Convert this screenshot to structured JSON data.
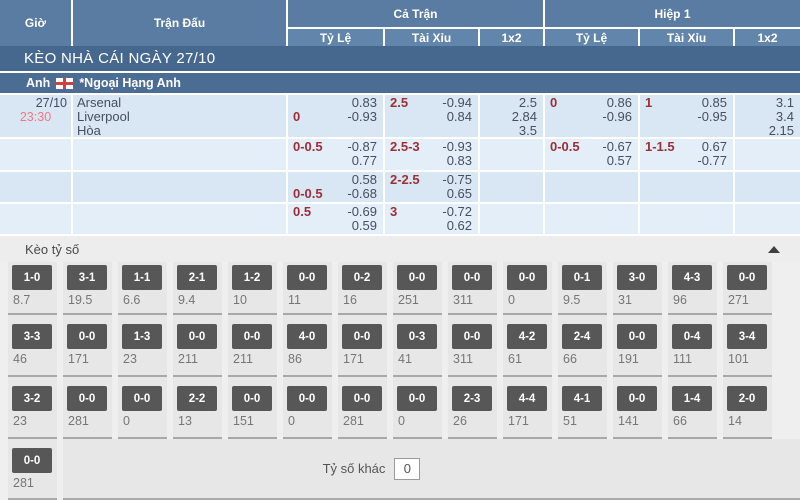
{
  "colors": {
    "header_blue": "#5b7ca2",
    "subheader_blue": "#6285ab",
    "banner_blue": "#46688f",
    "league_blue": "#4b6d94",
    "row_light": "#d9e6f3",
    "row_lighter": "#e4eef9",
    "handicap_red": "#9c2f35",
    "time_red": "#f27983",
    "value_slate": "#45505f",
    "score_box_gray": "#575757",
    "flag_red": "#d34040"
  },
  "header": {
    "col_time": "Giờ",
    "col_match": "Trận Đấu",
    "group_full": "Cả Trận",
    "group_half": "Hiệp 1",
    "sub": [
      "Tỷ Lệ",
      "Tài Xỉu",
      "1x2"
    ]
  },
  "banner": {
    "title": "KÈO NHÀ CÁI NGÀY 27/10"
  },
  "league": {
    "country": "Anh",
    "name": "*Ngoại Hạng Anh",
    "flag_icon": "england-flag-icon"
  },
  "odds_rows": [
    {
      "date": "27/10",
      "time": "23:30",
      "teams": [
        "Arsenal",
        "Liverpool",
        "Hòa"
      ],
      "ft_hdp": {
        "label": "0",
        "label_pos": "line2",
        "top": "0.83",
        "bottom": "-0.93"
      },
      "ft_ou": {
        "label": "2.5",
        "top": "-0.94",
        "bottom": "0.84"
      },
      "ft_1x2": [
        "2.5",
        "2.84",
        "3.5"
      ],
      "h1_hdp": {
        "label": "0",
        "top": "0.86",
        "bottom": "-0.96"
      },
      "h1_ou": {
        "label": "1",
        "top": "0.85",
        "bottom": "-0.95"
      },
      "h1_1x2": [
        "3.1",
        "3.4",
        "2.15"
      ]
    },
    {
      "ft_hdp": {
        "label": "0-0.5",
        "top": "-0.87",
        "bottom": "0.77"
      },
      "ft_ou": {
        "label": "2.5-3",
        "top": "-0.93",
        "bottom": "0.83"
      },
      "h1_hdp": {
        "label": "0-0.5",
        "top": "-0.67",
        "bottom": "0.57"
      },
      "h1_ou": {
        "label": "1-1.5",
        "top": "0.67",
        "bottom": "-0.77"
      }
    },
    {
      "ft_hdp": {
        "label": "0-0.5",
        "label_pos": "line2",
        "top": "0.58",
        "bottom": "-0.68"
      },
      "ft_ou": {
        "label": "2-2.5",
        "top": "-0.75",
        "bottom": "0.65"
      }
    },
    {
      "ft_hdp": {
        "label": "0.5",
        "top": "-0.69",
        "bottom": "0.59"
      },
      "ft_ou": {
        "label": "3",
        "top": "-0.72",
        "bottom": "0.62"
      }
    }
  ],
  "score_section": {
    "title": "Kèo tỷ số",
    "collapse_icon": "chevron-up-icon",
    "rows": [
      [
        {
          "score": "1-0",
          "odd": "8.7"
        },
        {
          "score": "3-1",
          "odd": "19.5"
        },
        {
          "score": "1-1",
          "odd": "6.6"
        },
        {
          "score": "2-1",
          "odd": "9.4"
        },
        {
          "score": "1-2",
          "odd": "10"
        },
        {
          "score": "0-0",
          "odd": "11"
        },
        {
          "score": "0-2",
          "odd": "16"
        },
        {
          "score": "0-0",
          "odd": "251"
        },
        {
          "score": "0-0",
          "odd": "311"
        },
        {
          "score": "0-0",
          "odd": "0"
        },
        {
          "score": "0-1",
          "odd": "9.5"
        },
        {
          "score": "3-0",
          "odd": "31"
        },
        {
          "score": "4-3",
          "odd": "96"
        },
        {
          "score": "0-0",
          "odd": "271"
        }
      ],
      [
        {
          "score": "3-3",
          "odd": "46"
        },
        {
          "score": "0-0",
          "odd": "171"
        },
        {
          "score": "1-3",
          "odd": "23"
        },
        {
          "score": "0-0",
          "odd": "211"
        },
        {
          "score": "0-0",
          "odd": "211"
        },
        {
          "score": "4-0",
          "odd": "86"
        },
        {
          "score": "0-0",
          "odd": "171"
        },
        {
          "score": "0-3",
          "odd": "41"
        },
        {
          "score": "0-0",
          "odd": "311"
        },
        {
          "score": "4-2",
          "odd": "61"
        },
        {
          "score": "2-4",
          "odd": "66"
        },
        {
          "score": "0-0",
          "odd": "191"
        },
        {
          "score": "0-4",
          "odd": "111"
        },
        {
          "score": "3-4",
          "odd": "101"
        }
      ],
      [
        {
          "score": "3-2",
          "odd": "23"
        },
        {
          "score": "0-0",
          "odd": "281"
        },
        {
          "score": "0-0",
          "odd": "0"
        },
        {
          "score": "2-2",
          "odd": "13"
        },
        {
          "score": "0-0",
          "odd": "151"
        },
        {
          "score": "0-0",
          "odd": "0"
        },
        {
          "score": "0-0",
          "odd": "281"
        },
        {
          "score": "0-0",
          "odd": "0"
        },
        {
          "score": "2-3",
          "odd": "26"
        },
        {
          "score": "4-4",
          "odd": "171"
        },
        {
          "score": "4-1",
          "odd": "51"
        },
        {
          "score": "0-0",
          "odd": "141"
        },
        {
          "score": "1-4",
          "odd": "66"
        },
        {
          "score": "2-0",
          "odd": "14"
        }
      ],
      [
        {
          "score": "0-0",
          "odd": "281"
        }
      ]
    ],
    "other": {
      "label": "Tỷ số khác",
      "value": "0"
    }
  }
}
